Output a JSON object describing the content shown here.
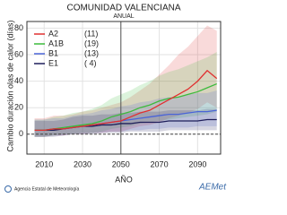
{
  "chart_data": {
    "type": "line",
    "title": "COMUNIDAD VALENCIANA",
    "subtitle": "ANUAL",
    "x_label": "AÑO",
    "y_label": "Cambio duración olas de calor (días)",
    "x": [
      2005,
      2010,
      2015,
      2020,
      2025,
      2030,
      2035,
      2040,
      2045,
      2050,
      2055,
      2060,
      2065,
      2070,
      2075,
      2080,
      2085,
      2090,
      2095,
      2100
    ],
    "xlim": [
      2001,
      2102
    ],
    "xticks": [
      2010,
      2030,
      2050,
      2070,
      2090
    ],
    "ylim": [
      -15,
      85
    ],
    "yticks": [
      0,
      20,
      40,
      60,
      80
    ],
    "grid": true,
    "vline": 2050,
    "hline": 0,
    "legend": "top-left",
    "series": [
      {
        "name": "A2",
        "count_label": "(11)",
        "color": "#e03030",
        "values": [
          3,
          3,
          4,
          4,
          5,
          6,
          7,
          8,
          9,
          10,
          13,
          16,
          18,
          22,
          26,
          30,
          34,
          40,
          48,
          42
        ],
        "lower": [
          -2,
          -2,
          -1,
          -1,
          0,
          0,
          1,
          1,
          2,
          2,
          4,
          6,
          7,
          9,
          12,
          14,
          16,
          19,
          24,
          20
        ],
        "upper": [
          12,
          12,
          14,
          14,
          15,
          17,
          18,
          20,
          22,
          24,
          28,
          33,
          38,
          45,
          52,
          60,
          66,
          74,
          82,
          78
        ]
      },
      {
        "name": "A1B",
        "count_label": "(19)",
        "color": "#3cba3c",
        "values": [
          3,
          3,
          4,
          5,
          6,
          7,
          8,
          10,
          13,
          15,
          17,
          20,
          22,
          25,
          27,
          28,
          30,
          32,
          35,
          38
        ],
        "lower": [
          -2,
          -2,
          -1,
          0,
          0,
          1,
          1,
          2,
          4,
          5,
          6,
          8,
          9,
          10,
          11,
          12,
          13,
          14,
          15,
          17
        ],
        "upper": [
          11,
          11,
          13,
          14,
          16,
          17,
          19,
          22,
          27,
          30,
          33,
          37,
          40,
          44,
          47,
          49,
          52,
          55,
          58,
          62
        ]
      },
      {
        "name": "B1",
        "count_label": "(13)",
        "color": "#4a64d8",
        "values": [
          3,
          3,
          4,
          4,
          5,
          6,
          7,
          8,
          9,
          10,
          11,
          12,
          13,
          14,
          15,
          15,
          16,
          17,
          17,
          18
        ],
        "lower": [
          -2,
          -2,
          -1,
          -1,
          0,
          0,
          1,
          1,
          2,
          2,
          3,
          3,
          4,
          4,
          5,
          5,
          5,
          6,
          6,
          6
        ],
        "upper": [
          11,
          11,
          12,
          12,
          14,
          15,
          16,
          18,
          19,
          21,
          22,
          24,
          25,
          27,
          28,
          28,
          30,
          31,
          31,
          33
        ]
      },
      {
        "name": "E1",
        "count_label": "( 4)",
        "color": "#1e1e5a",
        "values": [
          3,
          3,
          3,
          4,
          5,
          6,
          6,
          7,
          7,
          8,
          8,
          9,
          9,
          9,
          10,
          10,
          10,
          10,
          11,
          11
        ],
        "lower": [
          -2,
          -2,
          -2,
          -1,
          0,
          0,
          0,
          1,
          1,
          1,
          2,
          2,
          2,
          2,
          3,
          3,
          3,
          3,
          3,
          3
        ],
        "upper": [
          10,
          10,
          10,
          11,
          13,
          14,
          14,
          15,
          15,
          16,
          16,
          17,
          17,
          17,
          18,
          18,
          18,
          18,
          19,
          19
        ]
      }
    ],
    "footer": "Agencia Estatal de Meteorología",
    "logo": "AEMet"
  }
}
